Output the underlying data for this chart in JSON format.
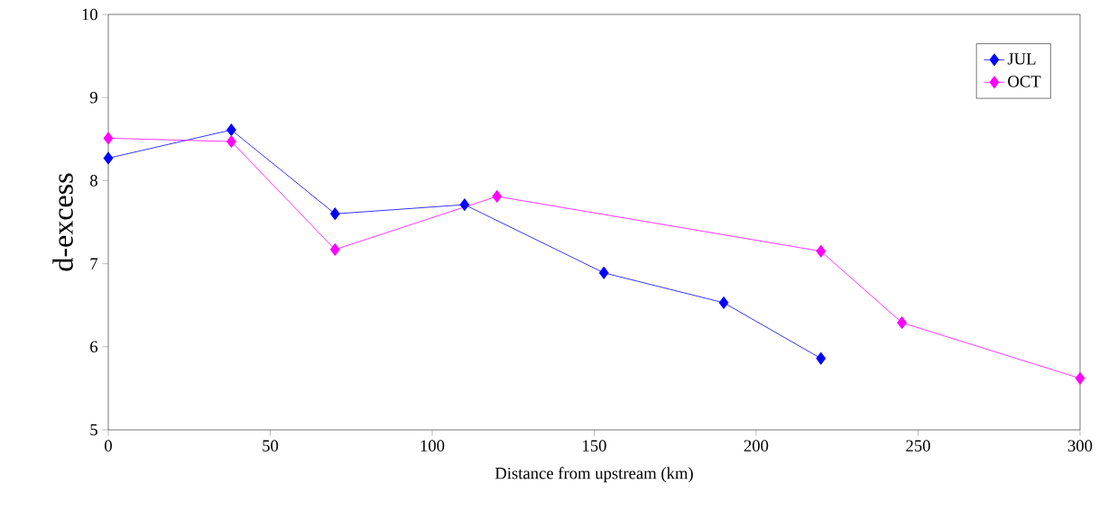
{
  "chart_data": {
    "type": "line",
    "xlabel": "Distance from upstream (km)",
    "ylabel": "d-excess",
    "xlim": [
      0,
      300
    ],
    "xticks": [
      0,
      50,
      100,
      150,
      200,
      250,
      300
    ],
    "ylim": [
      5,
      10
    ],
    "yticks": [
      5,
      6,
      7,
      8,
      9,
      10
    ],
    "grid": false,
    "legend": "top right",
    "marker": "diamond",
    "line_style": "solid",
    "series": [
      {
        "name": "JUL",
        "color": "#0000ff",
        "x": [
          0,
          38,
          70,
          110,
          153,
          190,
          220
        ],
        "values": [
          8.27,
          8.61,
          7.6,
          7.71,
          6.89,
          6.53,
          5.86
        ]
      },
      {
        "name": "OCT",
        "color": "#ff00ff",
        "x": [
          0,
          38,
          70,
          120,
          220,
          245,
          300
        ],
        "values": [
          8.51,
          8.47,
          7.17,
          7.81,
          7.15,
          6.29,
          5.62
        ]
      }
    ]
  }
}
